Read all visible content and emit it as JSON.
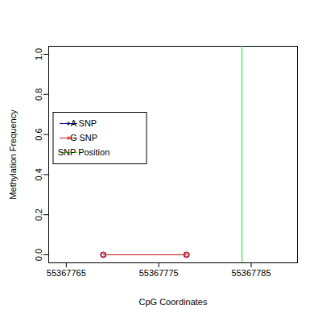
{
  "chart_data": {
    "type": "line",
    "x_label": "CpG Coordinates",
    "y_label": "Methylation Frequency",
    "x": [
      55367769,
      55367778
    ],
    "series": [
      {
        "name": "A SNP",
        "color": "#00008b",
        "values": [
          0,
          0
        ],
        "marker": "circle"
      },
      {
        "name": "G SNP",
        "color": "#cd2626",
        "values": [
          0,
          0
        ],
        "marker": "circle"
      }
    ],
    "vlines": [
      {
        "name": "SNP Position",
        "x": 55367784,
        "color": "#33ee33"
      }
    ],
    "xlim": [
      55367763.1,
      55367790
    ],
    "ylim": [
      -0.04,
      1.04
    ],
    "xticks": [
      55367765,
      55367775,
      55367785
    ],
    "yticks": [
      {
        "value": 0,
        "label": "0.0"
      },
      0.2,
      0.4,
      0.6,
      0.8,
      {
        "value": 1,
        "label": "1.0"
      }
    ],
    "legend": "left",
    "grid": false
  }
}
